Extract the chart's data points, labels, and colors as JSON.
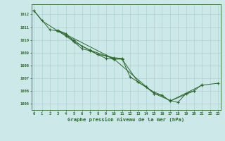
{
  "title": "Graphe pression niveau de la mer (hPa)",
  "background_color": "#cce8e8",
  "line_color": "#2d6a2d",
  "xlim": [
    -0.3,
    23.3
  ],
  "ylim": [
    1004.5,
    1012.8
  ],
  "yticks": [
    1005,
    1006,
    1007,
    1008,
    1009,
    1010,
    1011,
    1012
  ],
  "xticks": [
    0,
    1,
    2,
    3,
    4,
    5,
    6,
    7,
    8,
    9,
    10,
    11,
    12,
    13,
    14,
    15,
    16,
    17,
    18,
    19,
    20,
    21,
    22,
    23
  ],
  "series1_x": [
    0,
    1,
    3,
    4,
    5,
    7,
    9,
    10,
    15,
    16,
    17,
    21,
    23
  ],
  "series1_y": [
    1012.3,
    1011.5,
    1010.7,
    1010.3,
    1009.85,
    1009.2,
    1008.75,
    1008.5,
    1005.8,
    1005.65,
    1005.2,
    1006.45,
    1006.6
  ],
  "series2_x": [
    0,
    2,
    3,
    5,
    6,
    7,
    8,
    9,
    10,
    11,
    12,
    13,
    14,
    15,
    16,
    17,
    20,
    21
  ],
  "series2_y": [
    1012.3,
    1010.8,
    1010.7,
    1010.0,
    1009.5,
    1009.2,
    1008.85,
    1008.75,
    1008.6,
    1008.55,
    1007.1,
    1006.7,
    1006.3,
    1005.9,
    1005.65,
    1005.2,
    1006.0,
    1006.5
  ],
  "series3_x": [
    3,
    4,
    5,
    6,
    7,
    8,
    9,
    10,
    11
  ],
  "series3_y": [
    1010.75,
    1010.5,
    1009.85,
    1009.3,
    1009.15,
    1008.85,
    1008.55,
    1008.5,
    1008.5
  ],
  "series4_x": [
    3,
    10,
    11,
    13,
    14,
    15,
    17,
    18,
    19,
    20
  ],
  "series4_y": [
    1010.75,
    1008.5,
    1008.5,
    1006.7,
    1006.3,
    1005.8,
    1005.25,
    1005.1,
    1005.8,
    1006.0
  ]
}
